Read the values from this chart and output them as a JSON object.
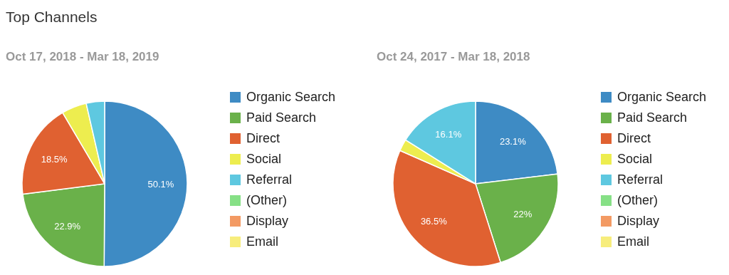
{
  "chart_data": [
    {
      "type": "pie",
      "title": "Top Channels",
      "subtitle": "Oct 17, 2018 - Mar 18, 2019",
      "legend": "right",
      "categories": [
        "Organic Search",
        "Paid Search",
        "Direct",
        "Social",
        "Referral",
        "(Other)",
        "Display",
        "Email"
      ],
      "values": [
        50.1,
        22.9,
        18.5,
        4.9,
        3.6,
        0,
        0,
        0
      ],
      "value_labels": [
        "50.1%",
        "22.9%",
        "18.5%",
        null,
        null,
        null,
        null,
        null
      ],
      "colors": [
        "#3e8bc4",
        "#6ab14a",
        "#e06131",
        "#eded4f",
        "#5ec8e0",
        "#86e086",
        "#f39a63",
        "#f7ed7c"
      ]
    },
    {
      "type": "pie",
      "subtitle": "Oct 24, 2017 - Mar 18, 2018",
      "legend": "right",
      "categories": [
        "Organic Search",
        "Paid Search",
        "Direct",
        "Social",
        "Referral",
        "(Other)",
        "Display",
        "Email"
      ],
      "values": [
        23.1,
        22,
        36.5,
        2.3,
        16.1,
        0,
        0,
        0
      ],
      "value_labels": [
        "23.1%",
        "22%",
        "36.5%",
        null,
        "16.1%",
        null,
        null,
        null
      ],
      "colors": [
        "#3e8bc4",
        "#6ab14a",
        "#e06131",
        "#eded4f",
        "#5ec8e0",
        "#86e086",
        "#f39a63",
        "#f7ed7c"
      ]
    }
  ]
}
